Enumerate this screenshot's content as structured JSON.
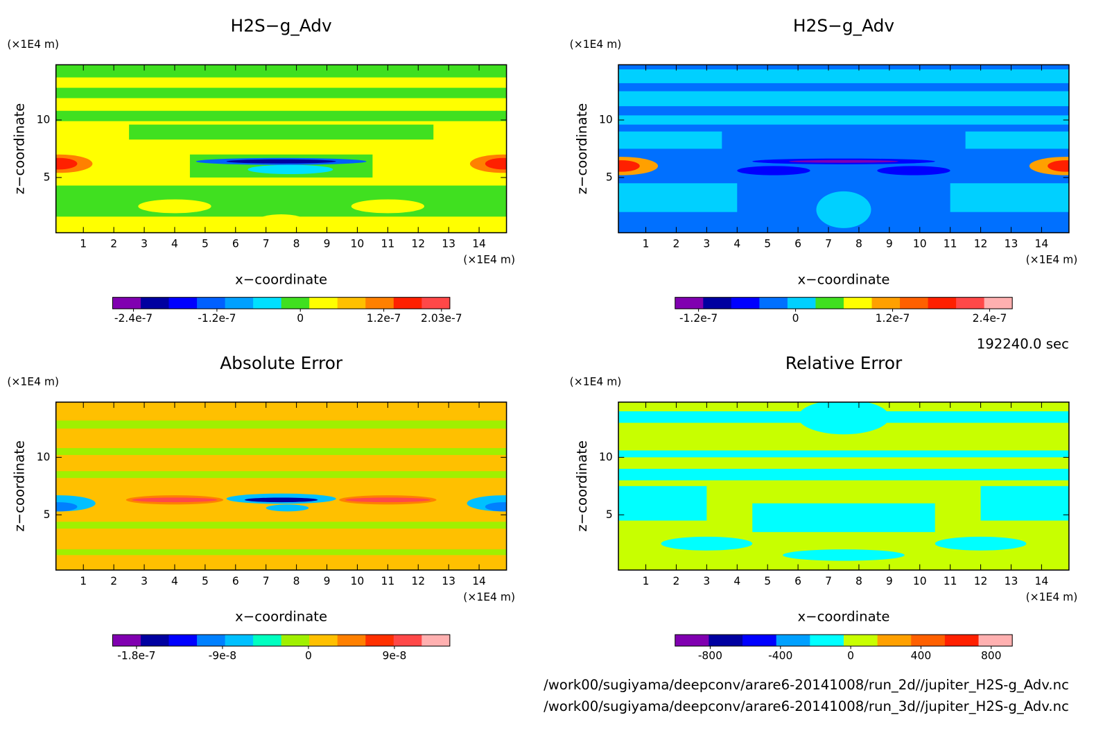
{
  "chart_data": [
    {
      "type": "contour",
      "title": "H2S−g_Adv",
      "xlabel": "x−coordinate",
      "ylabel": "z−coordinate",
      "x_unit": "(×1E4 m)",
      "y_unit": "(×1E4 m)",
      "xlim": [
        0.1,
        14.9
      ],
      "ylim": [
        0.2,
        14.8
      ],
      "xticks": [
        1,
        2,
        3,
        4,
        5,
        6,
        7,
        8,
        9,
        10,
        11,
        12,
        13,
        14
      ],
      "yticks": [
        5,
        10
      ],
      "colorbar_lim": [
        -2.7e-07,
        2.15e-07
      ],
      "colorbar_ticks": [
        -2.4e-07,
        -1.2e-07,
        0,
        1.2e-07,
        2.03e-07
      ],
      "colorbar_colors": [
        "#8000b0",
        "#0000a0",
        "#0000ff",
        "#0060ff",
        "#00a0ff",
        "#00e0ff",
        "#40e020",
        "#ffff00",
        "#ffc000",
        "#ff8000",
        "#ff2000",
        "#ff4848"
      ]
    },
    {
      "type": "contour",
      "title": "H2S−g_Adv",
      "xlabel": "x−coordinate",
      "ylabel": "z−coordinate",
      "x_unit": "(×1E4 m)",
      "y_unit": "(×1E4 m)",
      "xlim": [
        0.1,
        14.9
      ],
      "ylim": [
        0.2,
        14.8
      ],
      "xticks": [
        1,
        2,
        3,
        4,
        5,
        6,
        7,
        8,
        9,
        10,
        11,
        12,
        13,
        14
      ],
      "yticks": [
        5,
        10
      ],
      "colorbar_lim": [
        -1.49e-07,
        2.68e-07
      ],
      "colorbar_ticks": [
        -1.2e-07,
        0,
        1.2e-07,
        2.4e-07
      ],
      "colorbar_colors": [
        "#8000b0",
        "#0000a0",
        "#0000ff",
        "#0070ff",
        "#00d0ff",
        "#40e020",
        "#ffff00",
        "#ffa000",
        "#ff6000",
        "#ff2000",
        "#ff4848",
        "#ffb0b0"
      ]
    },
    {
      "type": "contour",
      "title": "Absolute Error",
      "xlabel": "x−coordinate",
      "ylabel": "z−coordinate",
      "x_unit": "(×1E4 m)",
      "y_unit": "(×1E4 m)",
      "xlim": [
        0.1,
        14.9
      ],
      "ylim": [
        0.2,
        14.8
      ],
      "xticks": [
        1,
        2,
        3,
        4,
        5,
        6,
        7,
        8,
        9,
        10,
        11,
        12,
        13,
        14
      ],
      "yticks": [
        5,
        10
      ],
      "colorbar_lim": [
        -2.05e-07,
        1.48e-07
      ],
      "colorbar_ticks": [
        -1.8e-07,
        -9e-08,
        0,
        9e-08
      ],
      "colorbar_colors": [
        "#8000b0",
        "#0000a0",
        "#0000ff",
        "#0080ff",
        "#00c0ff",
        "#00ffc0",
        "#a0f000",
        "#ffc000",
        "#ff8000",
        "#ff3000",
        "#ff4848",
        "#ffb0b0"
      ]
    },
    {
      "type": "contour",
      "title": "Relative Error",
      "xlabel": "x−coordinate",
      "ylabel": "z−coordinate",
      "x_unit": "(×1E4 m)",
      "y_unit": "(×1E4 m)",
      "xlim": [
        0.1,
        14.9
      ],
      "ylim": [
        0.2,
        14.8
      ],
      "xticks": [
        1,
        2,
        3,
        4,
        5,
        6,
        7,
        8,
        9,
        10,
        11,
        12,
        13,
        14
      ],
      "yticks": [
        5,
        10
      ],
      "colorbar_lim": [
        -1000,
        920
      ],
      "colorbar_ticks": [
        -800,
        -400,
        0,
        400,
        800
      ],
      "colorbar_colors": [
        "#8000b0",
        "#0000a0",
        "#0000ff",
        "#00a0ff",
        "#00ffff",
        "#c8ff00",
        "#ffa000",
        "#ff6000",
        "#ff2000",
        "#ffb0b0"
      ]
    }
  ],
  "time_label": "192240.0 sec",
  "file_paths": [
    "/work00/sugiyama/deepconv/arare6-20141008/run_2d//jupiter_H2S-g_Adv.nc",
    "/work00/sugiyama/deepconv/arare6-20141008/run_3d//jupiter_H2S-g_Adv.nc"
  ]
}
